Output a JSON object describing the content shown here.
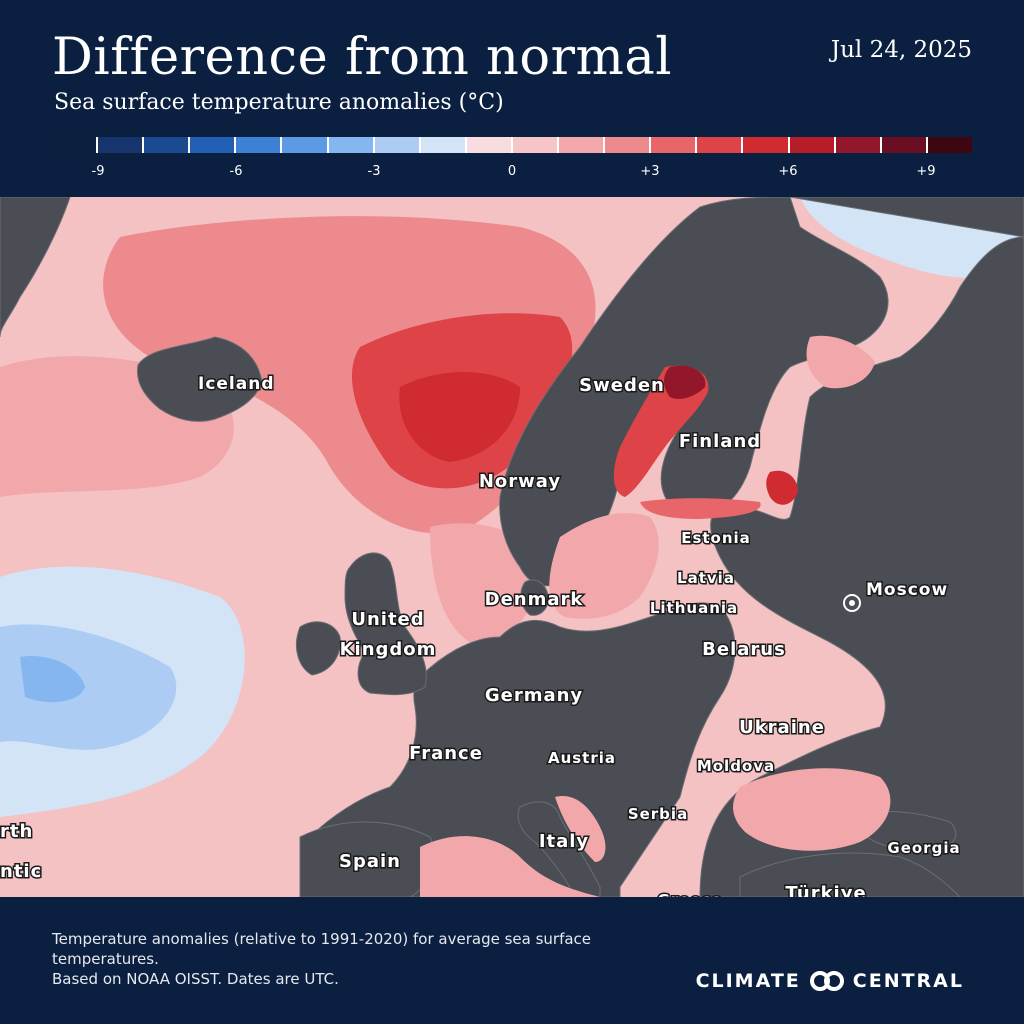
{
  "header": {
    "title": "Difference from normal",
    "subtitle": "Sea surface temperature anomalies (°C)",
    "date": "Jul 24, 2025"
  },
  "legend": {
    "colors": [
      "#0c1f3f",
      "#17356d",
      "#1c4a91",
      "#2160b5",
      "#3b82d6",
      "#5c9ae6",
      "#86b6ef",
      "#acccf3",
      "#d4e4f7",
      "#f8dde0",
      "#f6c5c8",
      "#f2a8ab",
      "#ed8a8d",
      "#e86669",
      "#de4347",
      "#cf2b31",
      "#b51e27",
      "#93172a",
      "#6a0f21",
      "#3d0710"
    ],
    "labels": [
      "-9",
      "-6",
      "-3",
      "0",
      "+3",
      "+6",
      "+9"
    ],
    "values": [
      -9,
      -6,
      -3,
      0,
      3,
      6,
      9
    ]
  },
  "map": {
    "colors": {
      "land": "#4a4d54",
      "border": "#6a6d74",
      "coast": "#ffffff",
      "ocean_base": "#f4c2c2",
      "lake": "#5b7fa6"
    },
    "labels": {
      "iceland": "Iceland",
      "sweden": "Sweden",
      "finland": "Finland",
      "norway": "Norway",
      "estonia": "Estonia",
      "latvia": "Latvia",
      "lithuania": "Lithuania",
      "denmark": "Denmark",
      "moscow": "Moscow",
      "uk_line1": "United",
      "uk_line2": "Kingdom",
      "belarus": "Belarus",
      "germany": "Germany",
      "ukraine": "Ukraine",
      "france": "France",
      "austria": "Austria",
      "moldova": "Moldova",
      "serbia": "Serbia",
      "italy": "Italy",
      "georgia": "Georgia",
      "spain": "Spain",
      "turkiye": "Türkiye",
      "greece": "Greece",
      "atlantic_1": "rth",
      "atlantic_2": "ntic"
    }
  },
  "footer": {
    "line1": "Temperature anomalies (relative to 1991-2020) for average sea surface temperatures.",
    "line2": "Based on NOAA OISST. Dates are UTC.",
    "brand_left": "CLIMATE",
    "brand_right": "CENTRAL"
  }
}
